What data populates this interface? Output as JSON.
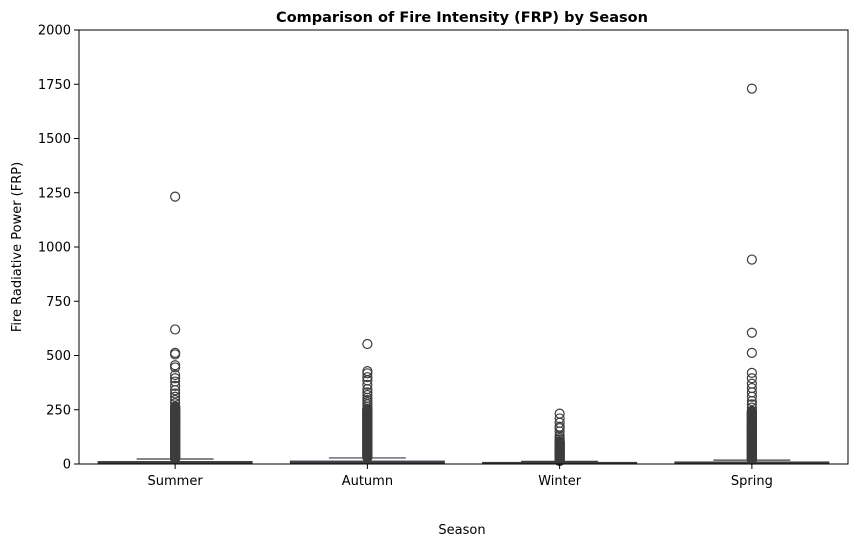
{
  "chart_data": {
    "type": "box",
    "title": "Comparison of Fire Intensity (FRP) by Season",
    "xlabel": "Season",
    "ylabel": "Fire Radiative Power (FRP)",
    "ylim": [
      0,
      2000
    ],
    "yticks": [
      0,
      250,
      500,
      750,
      1000,
      1250,
      1500,
      1750,
      2000
    ],
    "grid": false,
    "legend": "none",
    "categories": [
      "Summer",
      "Autumn",
      "Winter",
      "Spring"
    ],
    "box_color": "#3b76af",
    "line_color": "#3d3d3d",
    "boxes": [
      {
        "category": "Summer",
        "whisker_low": 0.5,
        "q1": 3,
        "median": 6,
        "q3": 11,
        "whisker_high": 23,
        "outliers": [
          1232,
          620,
          512,
          505,
          455,
          445,
          410,
          395,
          380,
          360,
          340,
          325,
          310,
          295,
          280,
          265,
          252,
          240,
          230,
          220,
          210,
          200,
          190,
          180,
          170,
          160,
          150,
          140,
          130,
          120,
          110,
          100,
          90,
          80,
          70,
          60,
          50,
          40,
          30
        ]
      },
      {
        "category": "Autumn",
        "whisker_low": 0.5,
        "q1": 3.5,
        "median": 7,
        "q3": 13,
        "whisker_high": 28,
        "outliers": [
          553,
          428,
          418,
          400,
          385,
          365,
          345,
          330,
          318,
          305,
          295,
          285,
          275,
          265,
          255,
          245,
          235,
          225,
          215,
          205,
          195,
          185,
          175,
          165,
          155,
          145,
          135,
          125,
          115,
          105,
          95,
          85,
          75,
          65,
          55,
          45,
          35
        ]
      },
      {
        "category": "Winter",
        "whisker_low": 0.5,
        "q1": 2,
        "median": 4,
        "q3": 7,
        "whisker_high": 12,
        "outliers": [
          232,
          210,
          190,
          172,
          165,
          150,
          130,
          120,
          113,
          105,
          98,
          90,
          82,
          75,
          68,
          60,
          52,
          45,
          38,
          30,
          24,
          18,
          14
        ]
      },
      {
        "category": "Spring",
        "whisker_low": 0.5,
        "q1": 2.5,
        "median": 5,
        "q3": 9,
        "whisker_high": 18,
        "outliers": [
          1730,
          942,
          605,
          512,
          420,
          395,
          370,
          350,
          330,
          310,
          290,
          275,
          260,
          245,
          232,
          220,
          208,
          195,
          182,
          170,
          158,
          146,
          134,
          122,
          110,
          98,
          86,
          74,
          62,
          50,
          40,
          30,
          22
        ]
      }
    ]
  }
}
